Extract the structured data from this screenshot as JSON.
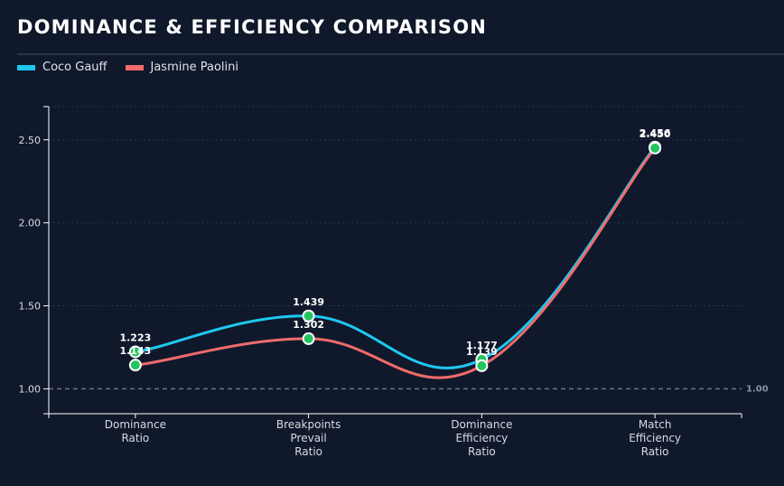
{
  "title": "DOMINANCE & EFFICIENCY COMPARISON",
  "legend": [
    {
      "name": "Coco Gauff",
      "color": "#1ec8f0"
    },
    {
      "name": "Jasmine Paolini",
      "color": "#f06b6b"
    }
  ],
  "chart_data": {
    "type": "line",
    "title": "DOMINANCE & EFFICIENCY COMPARISON",
    "xlabel": "",
    "ylabel": "",
    "categories": [
      [
        "Dominance",
        "Ratio"
      ],
      [
        "Breakpoints",
        "Prevail",
        "Ratio"
      ],
      [
        "Dominance",
        "Efficiency",
        "Ratio"
      ],
      [
        "Match",
        "Efficiency",
        "Ratio"
      ]
    ],
    "series": [
      {
        "name": "Coco Gauff",
        "color": "#1ec8f0",
        "values": [
          1.223,
          1.439,
          1.177,
          2.456
        ],
        "labels": [
          "1.223",
          "1.439",
          "1.177",
          "2.456"
        ]
      },
      {
        "name": "Jasmine Paolini",
        "color": "#f06b6b",
        "values": [
          1.143,
          1.302,
          1.139,
          2.45
        ],
        "labels": [
          "1.143",
          "1.302",
          "1.139",
          "2.450"
        ]
      }
    ],
    "ylim": [
      0.85,
      2.7
    ],
    "yticks": [
      1.0,
      1.5,
      2.0,
      2.5
    ],
    "ytick_labels": [
      "1.00",
      "1.50",
      "2.00",
      "2.50"
    ],
    "reference_line": {
      "value": 1.0,
      "label": "1.00"
    },
    "marker_color": "#22c55e",
    "grid": true,
    "legend_position": "top-left"
  }
}
